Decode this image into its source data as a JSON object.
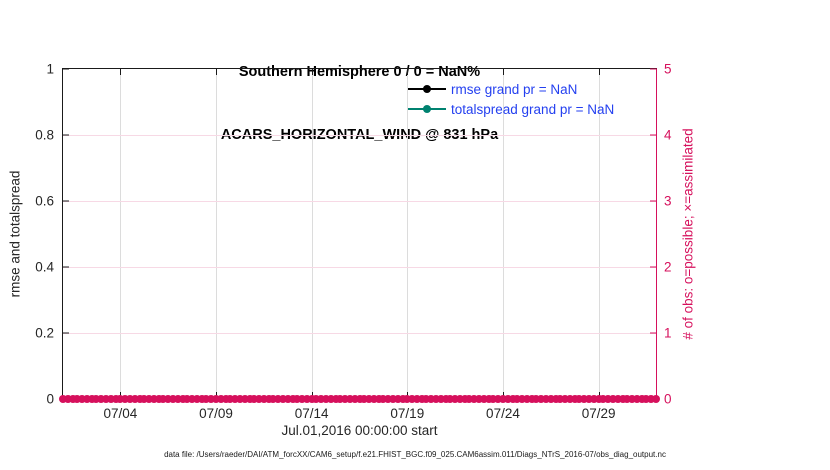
{
  "figure": {
    "title_line1": "Southern Hemisphere 0 / 0 = NaN%",
    "title_line2": "ACARS_HORIZONTAL_WIND @ 831 hPa",
    "caption": "data file: /Users/raeder/DAI/ATM_forcXX/CAM6_setup/f.e21.FHIST_BGC.f09_025.CAM6assim.011/Diags_NTrS_2016-07/obs_diag_output.nc"
  },
  "chart_data": {
    "type": "line",
    "title": "Southern Hemisphere 0 / 0 = NaN%",
    "subtitle": "ACARS_HORIZONTAL_WIND @ 831 hPa",
    "xlabel": "Jul.01,2016 00:00:00 start",
    "ylabel_left": "rmse and totalspread",
    "ylabel_right": "# of obs: o=possible; ×=assimilated",
    "grid": true,
    "legend_position": "upper-right-inside",
    "legend_text_color": "#2440f0",
    "x_axis": {
      "unit": "date (MM/DD), July 2016",
      "range_days": [
        0,
        31
      ],
      "ticks": [
        {
          "day": 3,
          "label": "07/04"
        },
        {
          "day": 8,
          "label": "07/09"
        },
        {
          "day": 13,
          "label": "07/14"
        },
        {
          "day": 18,
          "label": "07/19"
        },
        {
          "day": 23,
          "label": "07/24"
        },
        {
          "day": 28,
          "label": "07/29"
        }
      ]
    },
    "y_left": {
      "range": [
        0,
        1
      ],
      "color": "#262626",
      "ticks": [
        {
          "v": 0,
          "label": "0"
        },
        {
          "v": 0.2,
          "label": "0.2"
        },
        {
          "v": 0.4,
          "label": "0.4"
        },
        {
          "v": 0.6,
          "label": "0.6"
        },
        {
          "v": 0.8,
          "label": "0.8"
        },
        {
          "v": 1,
          "label": "1"
        }
      ]
    },
    "y_right": {
      "range": [
        0,
        5
      ],
      "color": "#d6105c",
      "ticks": [
        0,
        1,
        2,
        3,
        4,
        5
      ]
    },
    "series": [
      {
        "name": "rmse grand pr = NaN",
        "color": "#000000",
        "values": []
      },
      {
        "name": "totalspread grand pr = NaN",
        "color": "#008270",
        "values": []
      }
    ],
    "obs_counts": {
      "possible_glyph": "o",
      "assimilated_glyph": "×",
      "color": "#d6105c",
      "value": 0,
      "start_day": 0,
      "step_days": 0.25,
      "count": 125
    }
  }
}
